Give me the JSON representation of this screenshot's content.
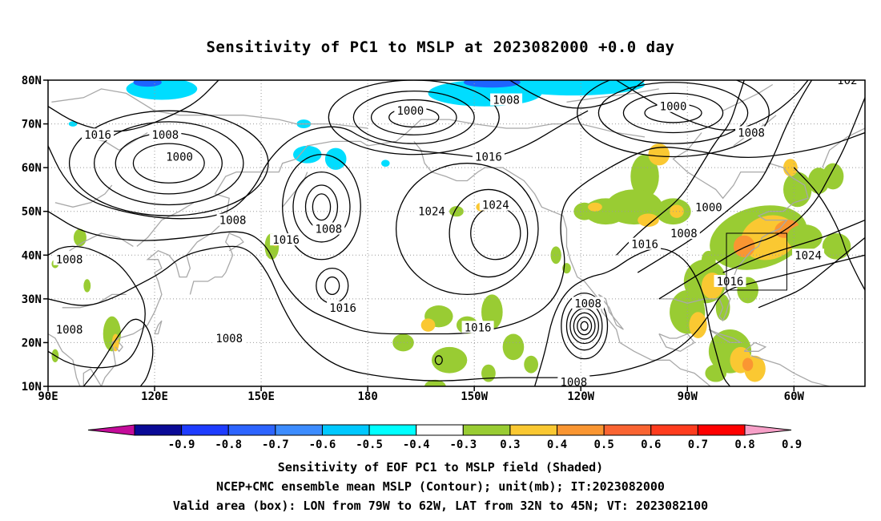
{
  "title": "Sensitivity of PC1 to MSLP at 2023082000 +0.0 day",
  "axes": {
    "y_ticks": [
      "80N",
      "70N",
      "60N",
      "50N",
      "40N",
      "30N",
      "20N",
      "10N"
    ],
    "x_ticks": [
      "90E",
      "120E",
      "150E",
      "180",
      "150W",
      "120W",
      "90W",
      "60W"
    ]
  },
  "contour_labels": [
    {
      "text": "1008",
      "lon": 123,
      "lat": 67.5
    },
    {
      "text": "1016",
      "lon": 104,
      "lat": 67.5
    },
    {
      "text": "1000",
      "lon": 127,
      "lat": 62.5
    },
    {
      "text": "1008",
      "lon": 142,
      "lat": 48
    },
    {
      "text": "1016",
      "lon": 157,
      "lat": 43.5
    },
    {
      "text": "1008",
      "lon": 169,
      "lat": 46
    },
    {
      "text": "1000",
      "lon": 192,
      "lat": 73
    },
    {
      "text": "1008",
      "lon": 219,
      "lat": 75.5
    },
    {
      "text": "1016",
      "lon": 214,
      "lat": 62.5
    },
    {
      "text": "1024",
      "lon": 198,
      "lat": 50
    },
    {
      "text": "1024",
      "lon": 216,
      "lat": 51.5
    },
    {
      "text": "1016",
      "lon": 173,
      "lat": 28
    },
    {
      "text": "1008",
      "lon": 141,
      "lat": 21
    },
    {
      "text": "1008",
      "lon": 96,
      "lat": 39
    },
    {
      "text": "1008",
      "lon": 96,
      "lat": 23
    },
    {
      "text": "1016",
      "lon": 211,
      "lat": 23.5
    },
    {
      "text": "1008",
      "lon": 242,
      "lat": 29
    },
    {
      "text": "1008",
      "lon": 238,
      "lat": 11
    },
    {
      "text": "1000",
      "lon": 266,
      "lat": 74
    },
    {
      "text": "1008",
      "lon": 288,
      "lat": 68
    },
    {
      "text": "1000",
      "lon": 276,
      "lat": 51
    },
    {
      "text": "1008",
      "lon": 269,
      "lat": 45
    },
    {
      "text": "1016",
      "lon": 258,
      "lat": 42.5
    },
    {
      "text": "1016",
      "lon": 282,
      "lat": 34
    },
    {
      "text": "1024",
      "lon": 304,
      "lat": 40
    },
    {
      "text": "102",
      "lon": 315,
      "lat": 80
    }
  ],
  "valid_box": {
    "lon_min": 281,
    "lon_max": 298,
    "lat_min": 32,
    "lat_max": 45
  },
  "colorbar": {
    "labels": [
      "-0.9",
      "-0.8",
      "-0.7",
      "-0.6",
      "-0.5",
      "-0.4",
      "-0.3",
      "0.3",
      "0.4",
      "0.5",
      "0.6",
      "0.7",
      "0.8",
      "0.9"
    ],
    "low_arrow_color": "#c40c9a",
    "high_arrow_color": "#f7a0c8",
    "colors": [
      "#0a0a96",
      "#1e3cff",
      "#2d64ff",
      "#3c8cff",
      "#00c8ff",
      "#00ffff",
      "#ffffff",
      "#99cc33",
      "#fac832",
      "#fa9632",
      "#fa6432",
      "#ff3c1e",
      "#ff0000"
    ]
  },
  "shading_colors": {
    "green": "#99cc33",
    "yellow": "#fac832",
    "orange": "#fa9632",
    "cyan": "#00ddff",
    "blue": "#1e64ff"
  },
  "caption": {
    "line1": "Sensitivity of EOF PC1 to MSLP field (Shaded)",
    "line2": "NCEP+CMC ensemble mean MSLP (Contour); unit(mb); IT:2023082000",
    "line3": "Valid area (box): LON from 79W to 62W, LAT from 32N to 45N; VT: 2023082100"
  }
}
